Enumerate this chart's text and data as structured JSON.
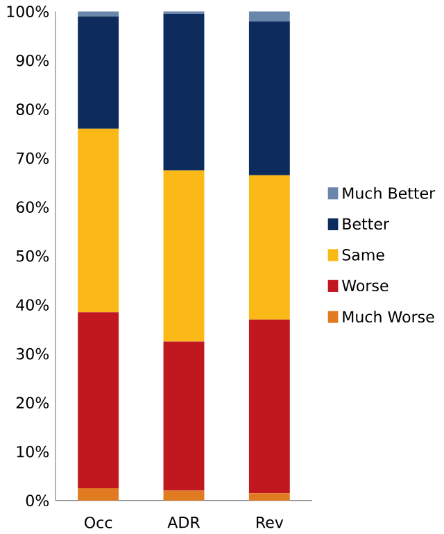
{
  "chart_data": {
    "type": "bar",
    "stacked": true,
    "categories": [
      "Occ",
      "ADR",
      "Rev"
    ],
    "series": [
      {
        "name": "Much Worse",
        "color": "#e07b22",
        "values": [
          2.5,
          2,
          1.5
        ]
      },
      {
        "name": "Worse",
        "color": "#c1171f",
        "values": [
          36,
          30.5,
          35.5
        ]
      },
      {
        "name": "Same",
        "color": "#fbb917",
        "values": [
          37.5,
          35,
          29.5
        ]
      },
      {
        "name": "Better",
        "color": "#0d2b5c",
        "values": [
          23,
          32,
          31.5
        ]
      },
      {
        "name": "Much Better",
        "color": "#6b86ab",
        "values": [
          1,
          0.5,
          2
        ]
      }
    ],
    "ylim": [
      0,
      100
    ],
    "yticks": [
      {
        "value": 0,
        "label": "0%"
      },
      {
        "value": 10,
        "label": "10%"
      },
      {
        "value": 20,
        "label": "20%"
      },
      {
        "value": 30,
        "label": "30%"
      },
      {
        "value": 40,
        "label": "40%"
      },
      {
        "value": 50,
        "label": "50%"
      },
      {
        "value": 60,
        "label": "60%"
      },
      {
        "value": 70,
        "label": "70%"
      },
      {
        "value": 80,
        "label": "80%"
      },
      {
        "value": 90,
        "label": "90%"
      },
      {
        "value": 100,
        "label": "100%"
      }
    ],
    "legend": "right",
    "grid": false
  }
}
